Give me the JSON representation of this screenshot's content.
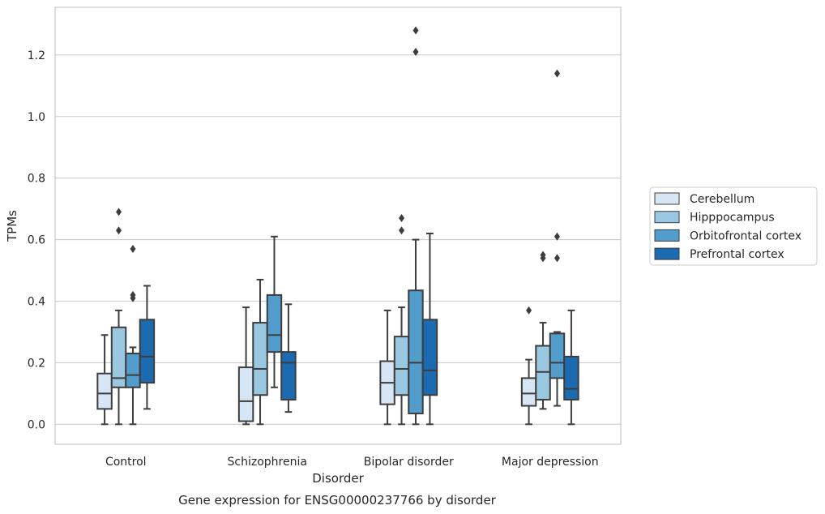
{
  "chart_data": {
    "type": "boxplot",
    "title": "Gene expression for ENSG00000237766 by disorder",
    "xlabel": "Disorder",
    "ylabel": "TPMs",
    "ylim": [
      -0.065,
      1.355
    ],
    "yticks": [
      "0.0",
      "0.2",
      "0.4",
      "0.6",
      "0.8",
      "1.0",
      "1.2"
    ],
    "ytick_values": [
      0,
      0.2,
      0.4,
      0.6,
      0.8,
      1.0,
      1.2
    ],
    "grid": "horizontal",
    "legend_position": "right",
    "categories": [
      "Control",
      "Schizophrenia",
      "Bipolar disorder",
      "Major depression"
    ],
    "series": [
      {
        "name": "Cerebellum",
        "color": "#d6e6f4",
        "boxes": [
          {
            "whislo": 0.0,
            "q1": 0.05,
            "med": 0.1,
            "q3": 0.165,
            "whishi": 0.29,
            "fliers": []
          },
          {
            "whislo": 0.0,
            "q1": 0.01,
            "med": 0.075,
            "q3": 0.185,
            "whishi": 0.38,
            "fliers": []
          },
          {
            "whislo": 0.0,
            "q1": 0.065,
            "med": 0.135,
            "q3": 0.205,
            "whishi": 0.37,
            "fliers": []
          },
          {
            "whislo": 0.0,
            "q1": 0.06,
            "med": 0.1,
            "q3": 0.15,
            "whishi": 0.21,
            "fliers": [
              0.37
            ]
          }
        ]
      },
      {
        "name": "Hipppocampus",
        "color": "#9ac8e0",
        "boxes": [
          {
            "whislo": 0.0,
            "q1": 0.12,
            "med": 0.15,
            "q3": 0.315,
            "whishi": 0.37,
            "fliers": [
              0.63,
              0.69
            ]
          },
          {
            "whislo": 0.0,
            "q1": 0.095,
            "med": 0.18,
            "q3": 0.33,
            "whishi": 0.47,
            "fliers": []
          },
          {
            "whislo": 0.0,
            "q1": 0.095,
            "med": 0.18,
            "q3": 0.285,
            "whishi": 0.38,
            "fliers": [
              0.63,
              0.67
            ]
          },
          {
            "whislo": 0.05,
            "q1": 0.08,
            "med": 0.17,
            "q3": 0.255,
            "whishi": 0.33,
            "fliers": [
              0.54,
              0.55
            ]
          }
        ]
      },
      {
        "name": "Orbitofrontal cortex",
        "color": "#529dcc",
        "boxes": [
          {
            "whislo": 0.0,
            "q1": 0.12,
            "med": 0.16,
            "q3": 0.23,
            "whishi": 0.25,
            "fliers": [
              0.41,
              0.42,
              0.57
            ]
          },
          {
            "whislo": 0.12,
            "q1": 0.235,
            "med": 0.29,
            "q3": 0.42,
            "whishi": 0.61,
            "fliers": []
          },
          {
            "whislo": 0.0,
            "q1": 0.035,
            "med": 0.2,
            "q3": 0.435,
            "whishi": 0.6,
            "fliers": [
              1.21,
              1.28
            ]
          },
          {
            "whislo": 0.06,
            "q1": 0.15,
            "med": 0.2,
            "q3": 0.295,
            "whishi": 0.3,
            "fliers": [
              0.54,
              0.61,
              1.14
            ]
          }
        ]
      },
      {
        "name": "Prefrontal cortex",
        "color": "#1c6aaf",
        "boxes": [
          {
            "whislo": 0.05,
            "q1": 0.135,
            "med": 0.22,
            "q3": 0.34,
            "whishi": 0.45,
            "fliers": []
          },
          {
            "whislo": 0.04,
            "q1": 0.08,
            "med": 0.2,
            "q3": 0.235,
            "whishi": 0.39,
            "fliers": []
          },
          {
            "whislo": 0.0,
            "q1": 0.095,
            "med": 0.175,
            "q3": 0.34,
            "whishi": 0.62,
            "fliers": []
          },
          {
            "whislo": 0.0,
            "q1": 0.08,
            "med": 0.115,
            "q3": 0.22,
            "whishi": 0.37,
            "fliers": []
          }
        ]
      }
    ]
  }
}
